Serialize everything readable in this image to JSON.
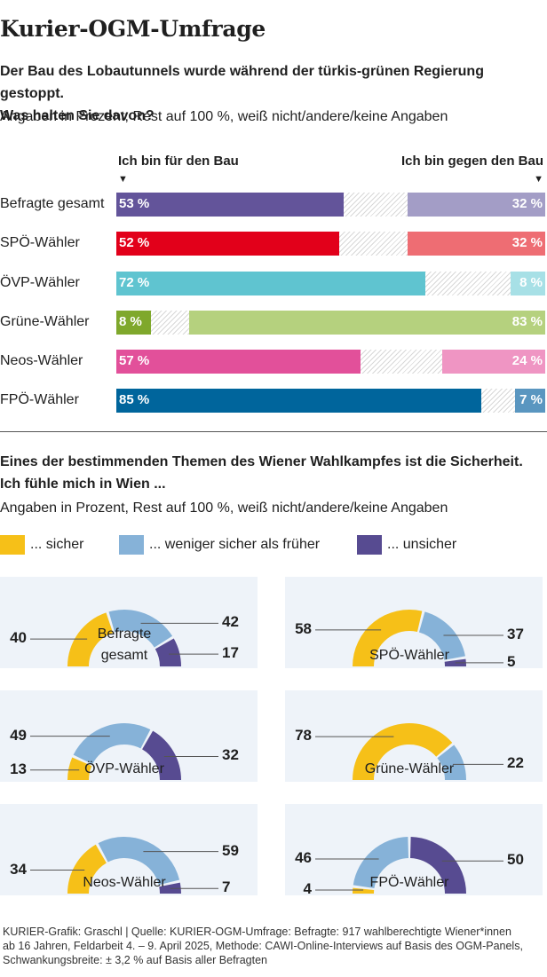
{
  "title": "Kurier-OGM-Umfrage",
  "q1": {
    "question_line1": "Der Bau des Lobautunnels wurde während der türkis-grünen Regierung gestoppt.",
    "question_line2": "Was halten Sie davon?",
    "note": "Angaben in Prozent, Rest auf 100 %, weiß nicht/andere/keine Angaben",
    "left_header": "Ich bin für den Bau",
    "right_header": "Ich bin gegen den Bau",
    "arrow": "▼"
  },
  "q2": {
    "question_line1": "Eines der bestimmenden Themen des Wiener Wahlkampfes ist die Sicherheit.",
    "question_line2": "Ich fühle mich in Wien ...",
    "note": "Angaben in Prozent, Rest auf 100 %, weiß nicht/andere/keine Angaben",
    "legend": [
      {
        "label": "... sicher",
        "color": "#f6c018"
      },
      {
        "label": "... weniger sicher als früher",
        "color": "#86b2d8"
      },
      {
        "label": "... unsicher",
        "color": "#574b91"
      }
    ]
  },
  "chart_data": [
    {
      "type": "bar",
      "title": "Der Bau des Lobautunnels wurde während der türkis-grünen Regierung gestoppt. Was halten Sie davon?",
      "categories": [
        "Befragte gesamt",
        "SPÖ-Wähler",
        "ÖVP-Wähler",
        "Grüne-Wähler",
        "Neos-Wähler",
        "FPÖ-Wähler"
      ],
      "series": [
        {
          "name": "Ich bin für den Bau",
          "values": [
            53,
            52,
            72,
            8,
            57,
            85
          ]
        },
        {
          "name": "Ich bin gegen den Bau",
          "values": [
            32,
            32,
            8,
            83,
            24,
            7
          ]
        }
      ],
      "value_labels_for": [
        "53 %",
        "52 %",
        "72 %",
        "8 %",
        "57 %",
        "85 %"
      ],
      "value_labels_against": [
        "32 %",
        "32 %",
        "8 %",
        "83 %",
        "24 %",
        "7 %"
      ],
      "colors_for": [
        "#63549a",
        "#e2001a",
        "#5fc4d0",
        "#7fa82c",
        "#e2509a",
        "#00659c"
      ],
      "colors_against": [
        "#a39dc6",
        "#ee6d73",
        "#a7e0e6",
        "#b5d17e",
        "#ef95c3",
        "#5a96c0"
      ],
      "stacked": true,
      "orientation": "horizontal"
    },
    {
      "type": "pie",
      "subtype": "semi-donut",
      "title": "Ich fühle mich in Wien ...",
      "series_names": [
        "... sicher",
        "... weniger sicher als früher",
        "... unsicher"
      ],
      "colors": [
        "#f6c018",
        "#86b2d8",
        "#574b91"
      ],
      "groups": [
        {
          "name": "Befragte gesamt",
          "label_line1": "Befragte",
          "label_line2": "gesamt",
          "values": [
            40,
            42,
            17
          ]
        },
        {
          "name": "SPÖ-Wähler",
          "label_line1": "SPÖ-Wähler",
          "label_line2": "",
          "values": [
            58,
            37,
            5
          ]
        },
        {
          "name": "ÖVP-Wähler",
          "label_line1": "ÖVP-Wähler",
          "label_line2": "",
          "values": [
            13,
            49,
            32
          ]
        },
        {
          "name": "Grüne-Wähler",
          "label_line1": "Grüne-Wähler",
          "label_line2": "",
          "values": [
            78,
            22,
            0
          ]
        },
        {
          "name": "Neos-Wähler",
          "label_line1": "Neos-Wähler",
          "label_line2": "",
          "values": [
            34,
            59,
            7
          ]
        },
        {
          "name": "FPÖ-Wähler",
          "label_line1": "FPÖ-Wähler",
          "label_line2": "",
          "values": [
            4,
            46,
            50
          ]
        }
      ]
    }
  ],
  "footer_line1": "KURIER-Grafik: Graschl | Quelle: KURIER-OGM-Umfrage: Befragte: 917 wahlberechtigte Wiener*innen",
  "footer_line2": "ab 16 Jahren, Feldarbeit 4. – 9. April 2025,  Methode: CAWI-Online-Interviews auf Basis des OGM-Panels,",
  "footer_line3": "Schwankungsbreite: ± 3,2 % auf Basis aller Befragten"
}
